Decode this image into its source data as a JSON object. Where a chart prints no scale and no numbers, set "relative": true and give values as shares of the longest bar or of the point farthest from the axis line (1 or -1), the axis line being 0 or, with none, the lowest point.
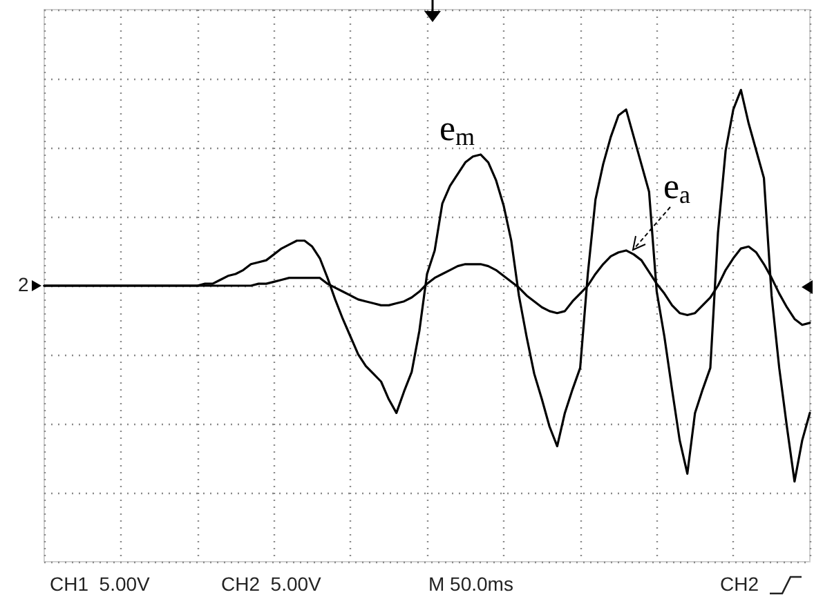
{
  "chart_data": {
    "type": "line",
    "relative": true,
    "grid": true,
    "legend": false,
    "marker": "none",
    "line_style": "solid",
    "categories": [
      null,
      null,
      null,
      null,
      null,
      null,
      null,
      null,
      null,
      null,
      null,
      null,
      null,
      null,
      null,
      null,
      null,
      null,
      null,
      null,
      null,
      null,
      null,
      null,
      null,
      null,
      null,
      null,
      null,
      null,
      null,
      null,
      null,
      null,
      null,
      null,
      null,
      null,
      null,
      null,
      null,
      null,
      null,
      null,
      null,
      null,
      null,
      null,
      null,
      null,
      null,
      null,
      null,
      null,
      null,
      null,
      null,
      null,
      null,
      null,
      null,
      null,
      null,
      null,
      null,
      null,
      null,
      null,
      null,
      null,
      null,
      null,
      null,
      null,
      null,
      null,
      null,
      null,
      null,
      null,
      null,
      null,
      null,
      null,
      null,
      null,
      null,
      null,
      null,
      null,
      null,
      null,
      null,
      null,
      null,
      null,
      null,
      null,
      null,
      null,
      null
    ],
    "series": [
      {
        "name": "e$_{m}$",
        "color": "#000000",
        "values": [
          0,
          0,
          0,
          0,
          0,
          0,
          0,
          0,
          0,
          0,
          0,
          0,
          0,
          0,
          0,
          0,
          0,
          0,
          0,
          0,
          0,
          0.01,
          0.01,
          0.03,
          0.05,
          0.06,
          0.08,
          0.11,
          0.12,
          0.13,
          0.16,
          0.19,
          0.21,
          0.23,
          0.23,
          0.2,
          0.14,
          0.04,
          -0.07,
          -0.17,
          -0.26,
          -0.35,
          -0.41,
          -0.45,
          -0.49,
          -0.58,
          -0.65,
          -0.54,
          -0.44,
          -0.23,
          0.06,
          0.18,
          0.42,
          0.51,
          0.57,
          0.63,
          0.66,
          0.67,
          0.63,
          0.54,
          0.41,
          0.23,
          -0.05,
          -0.26,
          -0.45,
          -0.58,
          -0.72,
          -0.82,
          -0.65,
          -0.53,
          -0.42,
          0.06,
          0.44,
          0.62,
          0.76,
          0.87,
          0.9,
          0.76,
          0.62,
          0.48,
          -0.03,
          -0.26,
          -0.53,
          -0.79,
          -0.96,
          -0.65,
          -0.53,
          -0.42,
          0.27,
          0.69,
          0.9,
          1,
          0.83,
          0.69,
          0.55,
          -0.05,
          -0.42,
          -0.72,
          -1,
          -0.79,
          -0.65
        ]
      },
      {
        "name": "e$_{a}$",
        "color": "#000000",
        "values": [
          0,
          0,
          0,
          0,
          0,
          0,
          0,
          0,
          0,
          0,
          0,
          0,
          0,
          0,
          0,
          0,
          0,
          0,
          0,
          0,
          0,
          0,
          0,
          0,
          0,
          0,
          0,
          0,
          0.01,
          0.01,
          0.02,
          0.03,
          0.04,
          0.04,
          0.04,
          0.04,
          0.04,
          0.01,
          -0.01,
          -0.03,
          -0.05,
          -0.07,
          -0.08,
          -0.09,
          -0.1,
          -0.1,
          -0.09,
          -0.08,
          -0.06,
          -0.03,
          0.01,
          0.04,
          0.06,
          0.08,
          0.1,
          0.11,
          0.11,
          0.11,
          0.1,
          0.08,
          0.05,
          0.02,
          -0.01,
          -0.05,
          -0.08,
          -0.11,
          -0.13,
          -0.14,
          -0.13,
          -0.08,
          -0.04,
          0,
          0.06,
          0.11,
          0.15,
          0.17,
          0.18,
          0.16,
          0.13,
          0.07,
          0.01,
          -0.04,
          -0.1,
          -0.14,
          -0.15,
          -0.14,
          -0.1,
          -0.06,
          0,
          0.08,
          0.14,
          0.19,
          0.2,
          0.17,
          0.11,
          0.04,
          -0.04,
          -0.11,
          -0.17,
          -0.2,
          -0.19
        ]
      }
    ],
    "annotations": [
      "2",
      "CH1  5.00V",
      "CH2  5.00V",
      "M 50.0ms",
      "CH2"
    ]
  }
}
